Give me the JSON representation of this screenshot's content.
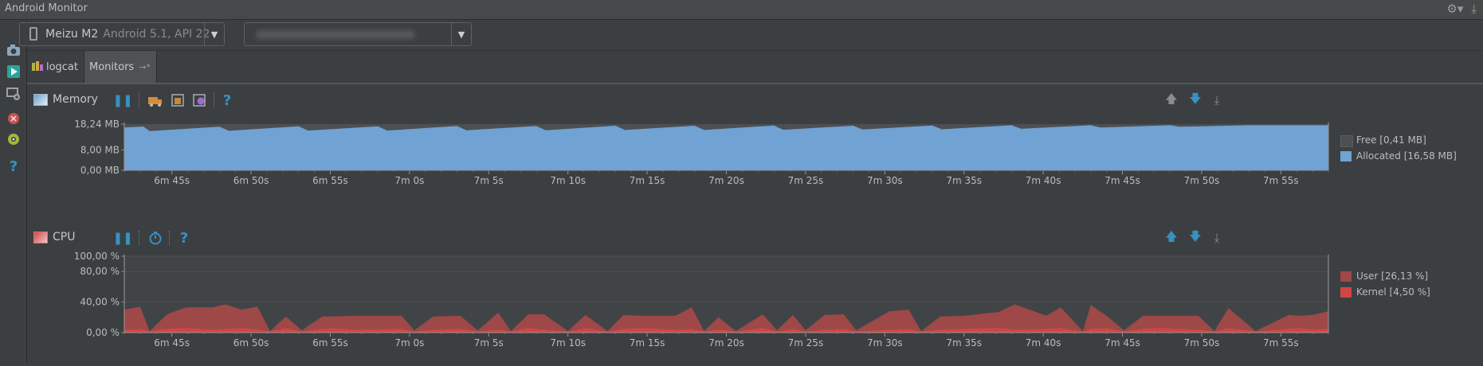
{
  "window": {
    "title": "Android Monitor",
    "settings_icon": "gear-icon",
    "hide_icon": "hide-panel-icon"
  },
  "device_selector": {
    "device_name": "Meizu M2",
    "device_info": "Android 5.1, API 22",
    "icon": "phone-icon"
  },
  "process_selector": {
    "value": ""
  },
  "tabs": [
    {
      "label": "logcat",
      "icon": "logcat-icon"
    },
    {
      "label": "Monitors",
      "suffix": "→*"
    }
  ],
  "left_toolbar": [
    "screenshot-icon",
    "run-icon",
    "screen-record-icon",
    "terminate-icon",
    "system-info-icon",
    "help-icon"
  ],
  "memory": {
    "title": "Memory",
    "legend": [
      {
        "label": "Free [0,41 MB]",
        "color": "#4c5052"
      },
      {
        "label": "Allocated [16,58 MB]",
        "color": "#70a2d4"
      }
    ]
  },
  "cpu": {
    "title": "CPU",
    "legend": [
      {
        "label": "User [26,13 %]",
        "color": "#9e4848"
      },
      {
        "label": "Kernel [4,50 %]",
        "color": "#d24545"
      }
    ]
  },
  "colors": {
    "background": "#3c3f41",
    "plot_bg": "#414446",
    "memory_allocated": "#70a2d4",
    "memory_free": "#4c5052",
    "cpu_user": "#9e4848",
    "cpu_kernel": "#d24545",
    "accent_blue": "#3592c4"
  },
  "chart_data": [
    {
      "type": "area",
      "title": "Memory",
      "ylabel": "",
      "yticks": [
        "18,24 MB",
        "8,00 MB",
        "0,00 MB"
      ],
      "ylim": [
        0,
        18.24
      ],
      "x_ticks": [
        "6m 45s",
        "6m 50s",
        "6m 55s",
        "7m 0s",
        "7m 5s",
        "7m 10s",
        "7m 15s",
        "7m 20s",
        "7m 25s",
        "7m 30s",
        "7m 35s",
        "7m 40s",
        "7m 45s",
        "7m 50s",
        "7m 55s"
      ],
      "x_range_seconds": [
        402,
        478
      ],
      "series": [
        {
          "name": "Allocated",
          "x": [
            402,
            403.2,
            403.6,
            408,
            408.6,
            413,
            413.6,
            418,
            418.6,
            423,
            423.6,
            428,
            428.6,
            433,
            433.6,
            438,
            438.6,
            443,
            443.6,
            448,
            448.6,
            453,
            453.6,
            458,
            458.6,
            463,
            463.6,
            468,
            468.6,
            473,
            473.6,
            478
          ],
          "values": [
            16.9,
            17.3,
            15.5,
            17.2,
            15.6,
            17.4,
            15.7,
            17.4,
            15.7,
            17.5,
            15.8,
            17.5,
            15.8,
            17.6,
            15.9,
            17.6,
            15.9,
            17.7,
            16.0,
            17.6,
            16.1,
            17.7,
            16.2,
            17.8,
            16.4,
            17.8,
            16.9,
            17.8,
            17.2,
            17.8,
            17.8,
            17.8
          ]
        },
        {
          "name": "Free",
          "values_note_total_mb": 18.24
        }
      ]
    },
    {
      "type": "area",
      "title": "CPU",
      "yticks": [
        "100,00 %",
        "80,00 %",
        "40,00 %",
        "0,00 %"
      ],
      "ylim": [
        0,
        100
      ],
      "x_ticks": [
        "6m 45s",
        "6m 50s",
        "6m 55s",
        "7m 0s",
        "7m 5s",
        "7m 10s",
        "7m 15s",
        "7m 20s",
        "7m 25s",
        "7m 30s",
        "7m 35s",
        "7m 40s",
        "7m 45s",
        "7m 50s",
        "7m 55s"
      ],
      "x_range_seconds": [
        402,
        478
      ],
      "series": [
        {
          "name": "User",
          "x": [
            402,
            403,
            403.6,
            404.1,
            404.7,
            405.9,
            407.6,
            408.4,
            409.4,
            410.4,
            411.2,
            412.2,
            413.2,
            414.5,
            415.1,
            416.4,
            419.5,
            420.3,
            421.5,
            423.2,
            424.3,
            425.6,
            426.4,
            427.5,
            428.5,
            430,
            431.1,
            432.5,
            433.5,
            434.6,
            436.8,
            437.8,
            438.6,
            439.5,
            440.6,
            442.3,
            443.2,
            444.2,
            445,
            446.2,
            447.4,
            448.2,
            450.3,
            451.5,
            452.3,
            453.5,
            455,
            457.2,
            458.2,
            460.2,
            461.1,
            462.5,
            463,
            464,
            465.1,
            466.3,
            467.4,
            469.8,
            470.8,
            471.7,
            473.4,
            475.5,
            476.2,
            477,
            478
          ],
          "values": [
            30,
            34,
            2,
            12,
            24,
            33,
            33,
            37,
            30,
            34,
            2,
            21,
            3,
            21,
            21,
            22,
            22,
            3,
            21,
            22,
            3,
            26,
            2,
            24,
            24,
            2,
            23,
            2,
            23,
            22,
            22,
            33,
            2,
            20,
            2,
            24,
            3,
            23,
            3,
            23,
            24,
            3,
            28,
            30,
            2,
            21,
            22,
            27,
            37,
            22,
            33,
            2,
            36,
            22,
            3,
            22,
            22,
            22,
            2,
            32,
            2,
            23,
            22,
            23,
            28
          ]
        },
        {
          "name": "Kernel",
          "values_note": "small band 2-6 %"
        }
      ]
    }
  ]
}
